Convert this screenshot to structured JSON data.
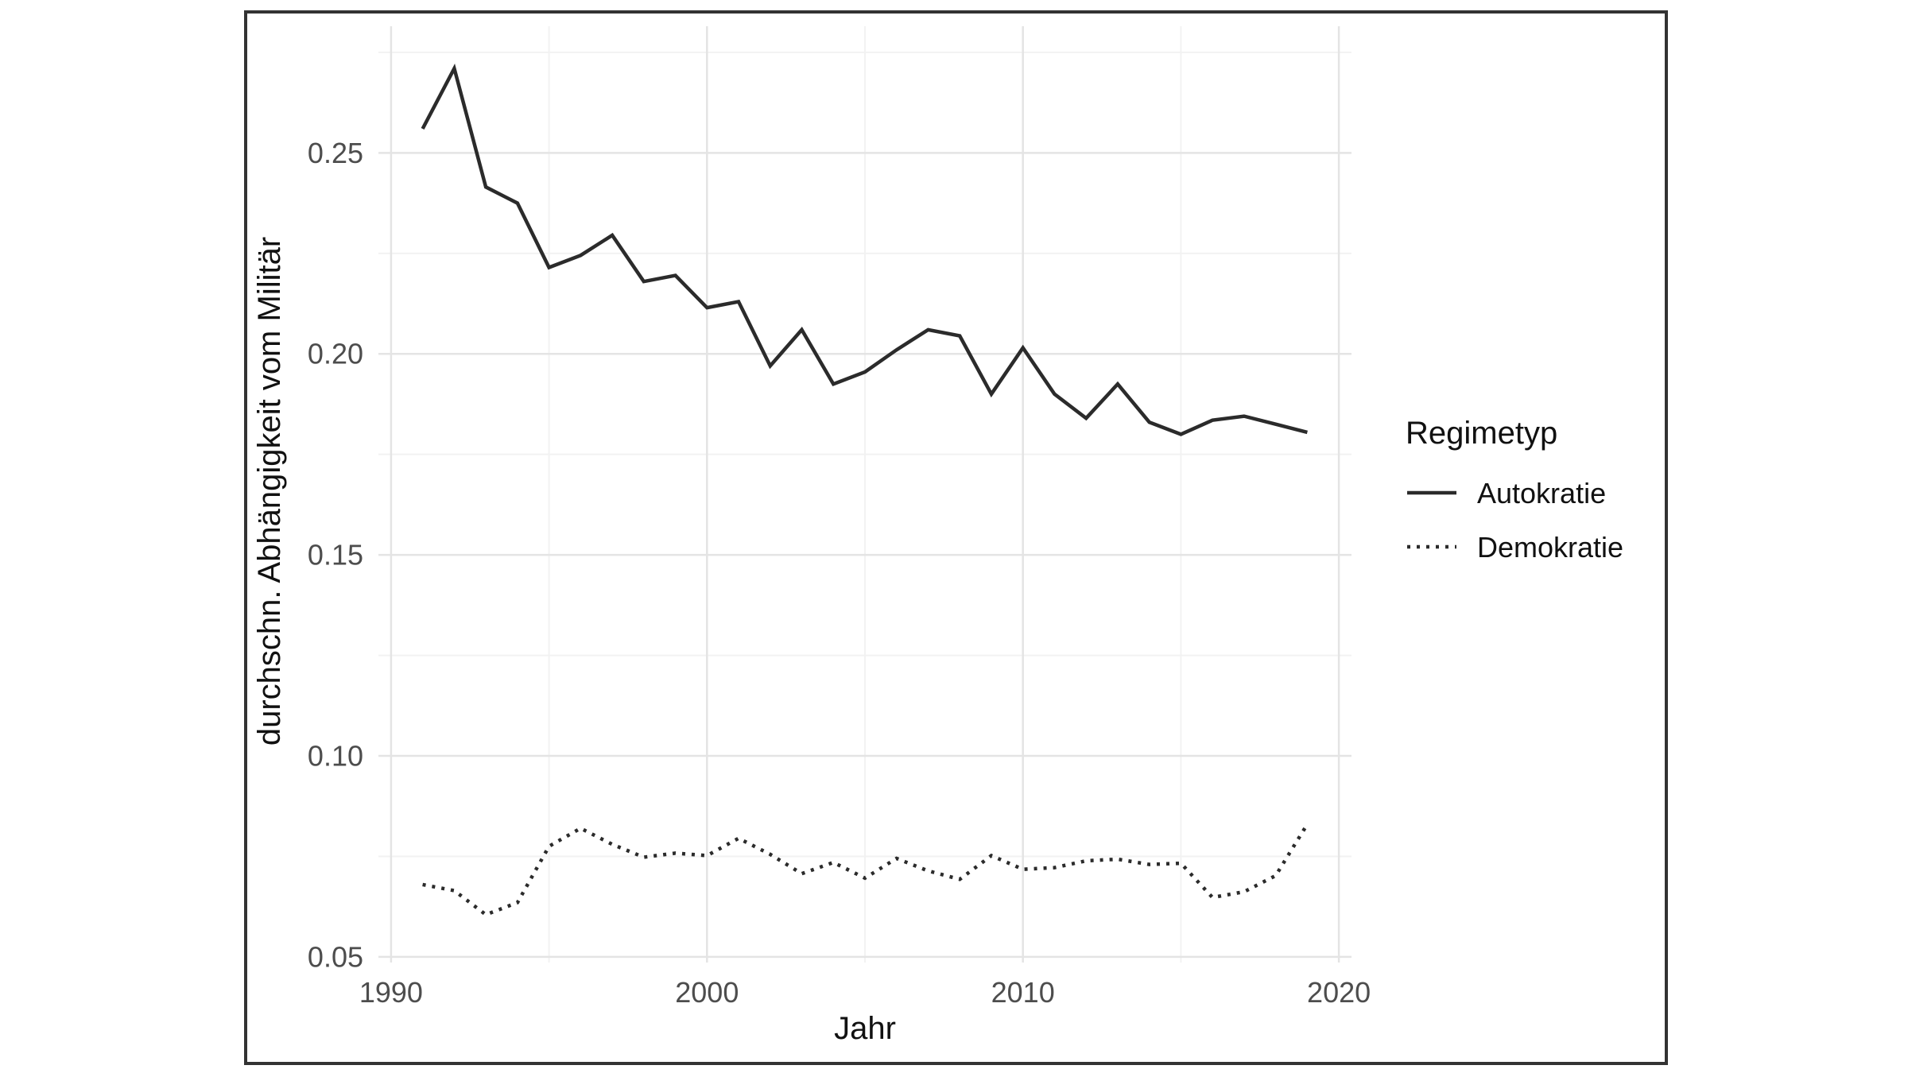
{
  "figure": {
    "background": "#ffffff",
    "border_color": "#333333"
  },
  "chart_data": {
    "type": "line",
    "title": "",
    "xlabel": "Jahr",
    "ylabel": "durchschn. Abhängigkeit vom Militär",
    "legend": {
      "title": "Regimetyp",
      "position": "right"
    },
    "grid": true,
    "xlim": [
      1989.6,
      2020.4
    ],
    "ylim": [
      0.0486,
      0.2815
    ],
    "x_ticks": {
      "major": [
        1990,
        2000,
        2010,
        2020
      ],
      "minor": [
        1995,
        2005,
        2015
      ],
      "labels": [
        "1990",
        "2000",
        "2010",
        "2020"
      ]
    },
    "y_ticks": {
      "major": [
        0.05,
        0.1,
        0.15,
        0.2,
        0.25
      ],
      "minor": [
        0.075,
        0.125,
        0.175,
        0.225,
        0.275
      ],
      "labels": [
        "0.05",
        "0.10",
        "0.15",
        "0.20",
        "0.25"
      ]
    },
    "x": [
      1991,
      1992,
      1993,
      1994,
      1995,
      1996,
      1997,
      1998,
      1999,
      2000,
      2001,
      2002,
      2003,
      2004,
      2005,
      2006,
      2007,
      2008,
      2009,
      2010,
      2011,
      2012,
      2013,
      2014,
      2015,
      2016,
      2017,
      2018,
      2019
    ],
    "series": [
      {
        "name": "Autokratie",
        "linestyle": "solid",
        "color": "#2b2b2b",
        "values": [
          0.256,
          0.271,
          0.2415,
          0.2375,
          0.2215,
          0.2245,
          0.2295,
          0.218,
          0.2195,
          0.2115,
          0.213,
          0.197,
          0.206,
          0.1925,
          0.1955,
          0.201,
          0.206,
          0.2045,
          0.19,
          0.2015,
          0.19,
          0.184,
          0.1925,
          0.183,
          0.18,
          0.1835,
          0.1845,
          0.1825,
          0.1805
        ]
      },
      {
        "name": "Demokratie",
        "linestyle": "dotted",
        "color": "#2b2b2b",
        "values": [
          0.068,
          0.0665,
          0.0605,
          0.0635,
          0.0775,
          0.082,
          0.078,
          0.0748,
          0.0758,
          0.0752,
          0.0795,
          0.0755,
          0.0707,
          0.0735,
          0.0696,
          0.0745,
          0.0714,
          0.0693,
          0.0752,
          0.0718,
          0.0722,
          0.0739,
          0.0743,
          0.073,
          0.0733,
          0.0648,
          0.0662,
          0.0702,
          0.083
        ]
      }
    ],
    "colors": {
      "grid_major": "#e4e4e4",
      "grid_minor": "#f2f2f2",
      "tick_label": "#4d4d4d",
      "axis_title": "#111111",
      "line": "#2b2b2b"
    }
  }
}
